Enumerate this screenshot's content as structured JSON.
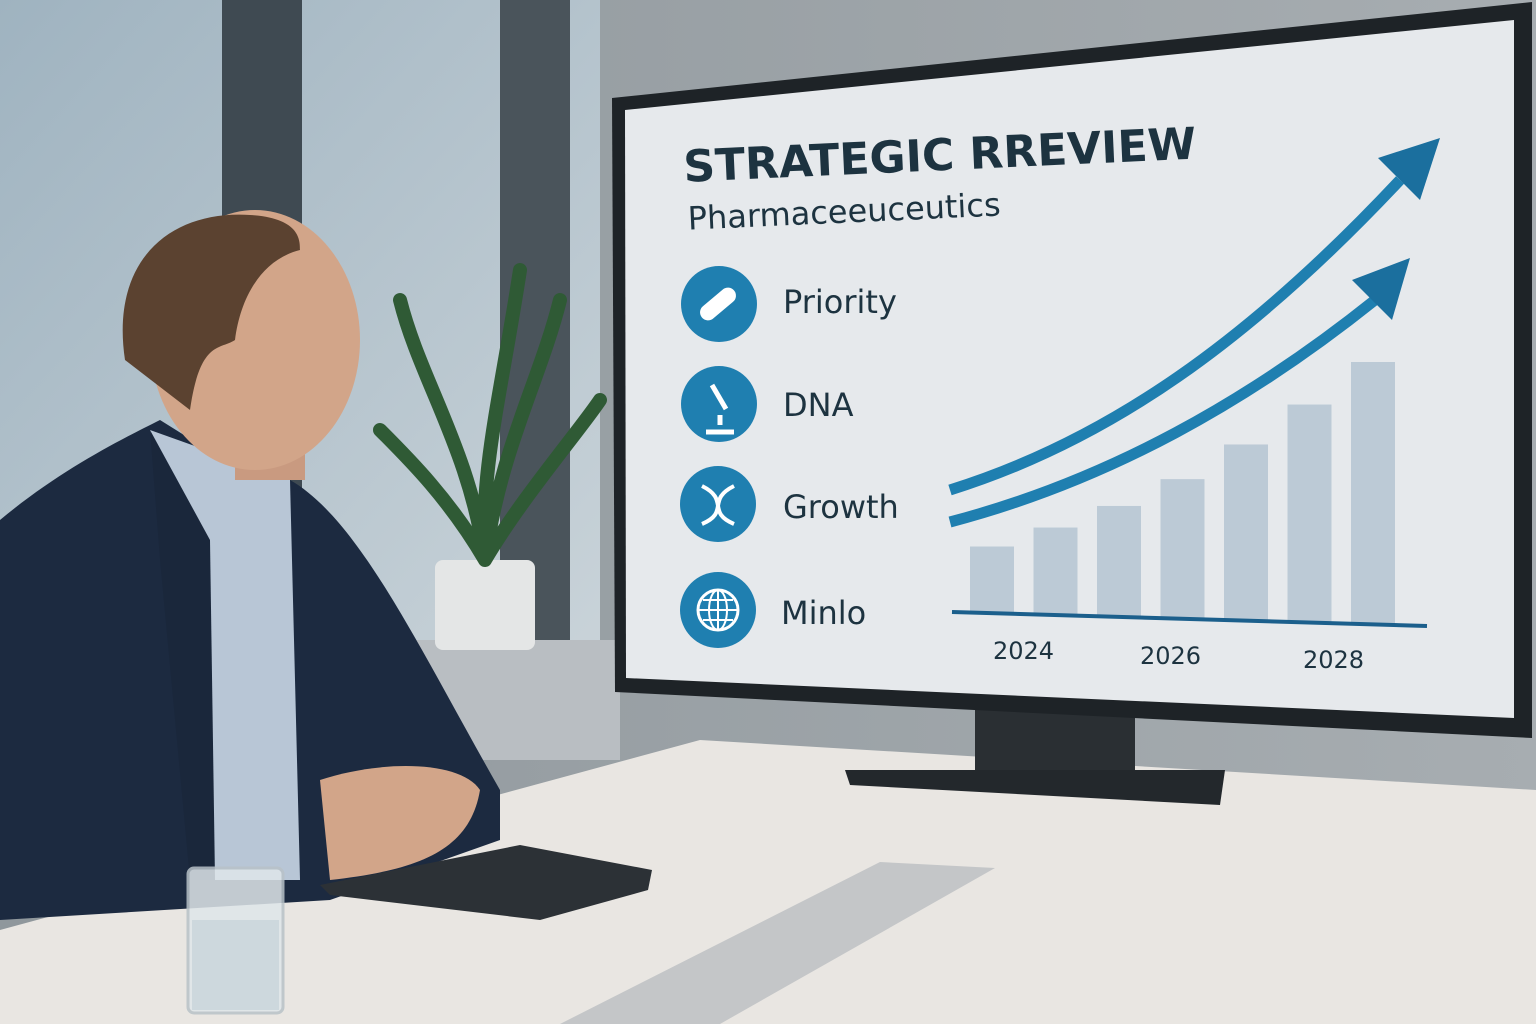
{
  "screen": {
    "title": "STRATEGIC RREVIEW",
    "subtitle": "Pharmaceeuceutics",
    "items": [
      {
        "label": "Priority",
        "icon": "pill-icon"
      },
      {
        "label": "DNA",
        "icon": "microscope-icon"
      },
      {
        "label": "Growth",
        "icon": "dna-icon"
      },
      {
        "label": "Minlo",
        "icon": "globe-icon"
      }
    ],
    "x_labels": [
      "2024",
      "2026",
      "2028"
    ],
    "bar_levels": [
      0.25,
      0.33,
      0.42,
      0.53,
      0.67,
      0.83,
      1.0
    ],
    "colors": {
      "accent": "#1f7fb0",
      "bars": "#bccad6",
      "screen_bg": "#e6e9ec",
      "text": "#1d3340"
    }
  }
}
